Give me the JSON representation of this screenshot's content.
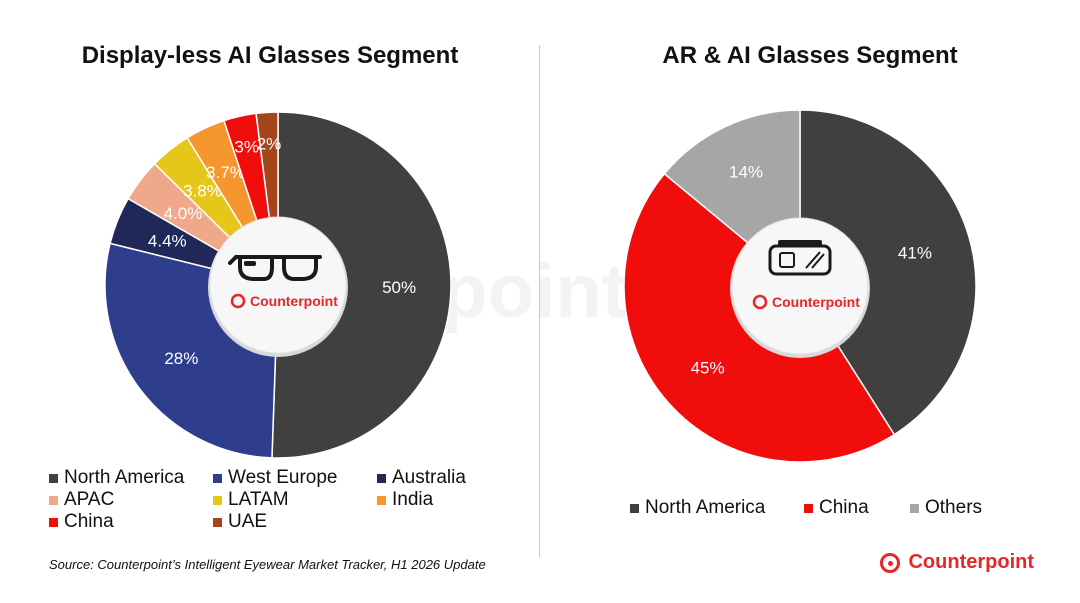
{
  "left_title": "Display-less AI Glasses Segment",
  "right_title": "AR & AI Glasses Segment",
  "source": "Source: Counterpoint’s Intelligent Eyewear Market Tracker, H1 2026 Update",
  "brand": "Counterpoint",
  "icons": {
    "left_center": "smart-glasses-icon",
    "right_center": "vr-headset-icon",
    "brand": "counterpoint-logo-icon"
  },
  "chart_data": [
    {
      "type": "pie",
      "title": "Display-less AI Glasses Segment",
      "legend_position": "bottom",
      "slices": [
        {
          "name": "North America",
          "value": 50,
          "label": "50%",
          "color": "#404040"
        },
        {
          "name": "West Europe",
          "value": 28,
          "label": "28%",
          "color": "#2e3e8c"
        },
        {
          "name": "Australia",
          "value": 4.4,
          "label": "4.4%",
          "color": "#1f2859"
        },
        {
          "name": "APAC",
          "value": 4.0,
          "label": "4.0%",
          "color": "#f0a88a"
        },
        {
          "name": "LATAM",
          "value": 3.8,
          "label": "3.8%",
          "color": "#e6c619"
        },
        {
          "name": "India",
          "value": 3.7,
          "label": "3.7%",
          "color": "#f5962e"
        },
        {
          "name": "China",
          "value": 3,
          "label": "3%",
          "color": "#f20d0d"
        },
        {
          "name": "UAE",
          "value": 2,
          "label": "2%",
          "color": "#a3461c"
        }
      ]
    },
    {
      "type": "pie",
      "title": "AR & AI Glasses Segment",
      "legend_position": "bottom",
      "slices": [
        {
          "name": "North America",
          "value": 41,
          "label": "41%",
          "color": "#404040"
        },
        {
          "name": "China",
          "value": 45,
          "label": "45%",
          "color": "#f20d0d"
        },
        {
          "name": "Others",
          "value": 14,
          "label": "14%",
          "color": "#a6a6a6"
        }
      ]
    }
  ]
}
